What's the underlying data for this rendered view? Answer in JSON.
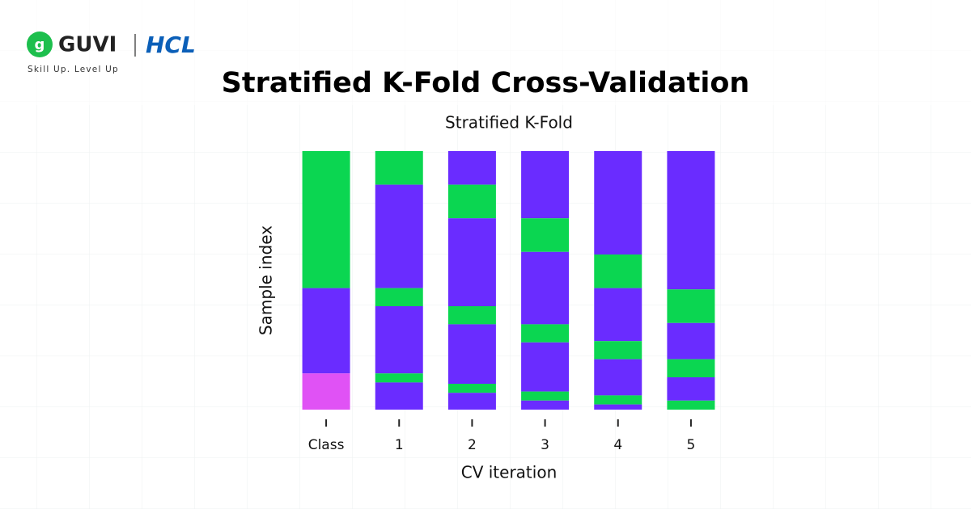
{
  "header": {
    "brand": "GUVI",
    "partner": "HCL",
    "tagline": "Skill Up. Level Up"
  },
  "title": "Stratified K-Fold Cross-Validation",
  "chart_data": {
    "type": "stacked_bar",
    "title": "Stratified K-Fold",
    "x_label": "CV iteration",
    "y_label": "Sample index",
    "ylim": [
      0,
      100
    ],
    "y_inverted": true,
    "categories": [
      "Class",
      "1",
      "2",
      "3",
      "4",
      "5"
    ],
    "stacks": [
      [
        {
          "value": 53,
          "color": "#0bd651"
        },
        {
          "value": 33,
          "color": "#6a2cff"
        },
        {
          "value": 14,
          "color": "#e052f5"
        }
      ],
      [
        {
          "value": 13,
          "color": "#0bd651"
        },
        {
          "value": 40,
          "color": "#6a2cff"
        },
        {
          "value": 7,
          "color": "#0bd651"
        },
        {
          "value": 26,
          "color": "#6a2cff"
        },
        {
          "value": 3.5,
          "color": "#0bd651"
        },
        {
          "value": 10.5,
          "color": "#6a2cff"
        }
      ],
      [
        {
          "value": 13,
          "color": "#6a2cff"
        },
        {
          "value": 13,
          "color": "#0bd651"
        },
        {
          "value": 34,
          "color": "#6a2cff"
        },
        {
          "value": 7,
          "color": "#0bd651"
        },
        {
          "value": 23,
          "color": "#6a2cff"
        },
        {
          "value": 3.5,
          "color": "#0bd651"
        },
        {
          "value": 6.5,
          "color": "#6a2cff"
        }
      ],
      [
        {
          "value": 26,
          "color": "#6a2cff"
        },
        {
          "value": 13,
          "color": "#0bd651"
        },
        {
          "value": 28,
          "color": "#6a2cff"
        },
        {
          "value": 7,
          "color": "#0bd651"
        },
        {
          "value": 19,
          "color": "#6a2cff"
        },
        {
          "value": 3.5,
          "color": "#0bd651"
        },
        {
          "value": 3.5,
          "color": "#6a2cff"
        }
      ],
      [
        {
          "value": 40,
          "color": "#6a2cff"
        },
        {
          "value": 13,
          "color": "#0bd651"
        },
        {
          "value": 20.5,
          "color": "#6a2cff"
        },
        {
          "value": 7,
          "color": "#0bd651"
        },
        {
          "value": 14,
          "color": "#6a2cff"
        },
        {
          "value": 3.5,
          "color": "#0bd651"
        },
        {
          "value": 2,
          "color": "#6a2cff"
        }
      ],
      [
        {
          "value": 53.5,
          "color": "#6a2cff"
        },
        {
          "value": 13,
          "color": "#0bd651"
        },
        {
          "value": 14,
          "color": "#6a2cff"
        },
        {
          "value": 7,
          "color": "#0bd651"
        },
        {
          "value": 9,
          "color": "#6a2cff"
        },
        {
          "value": 3.5,
          "color": "#0bd651"
        }
      ]
    ]
  }
}
